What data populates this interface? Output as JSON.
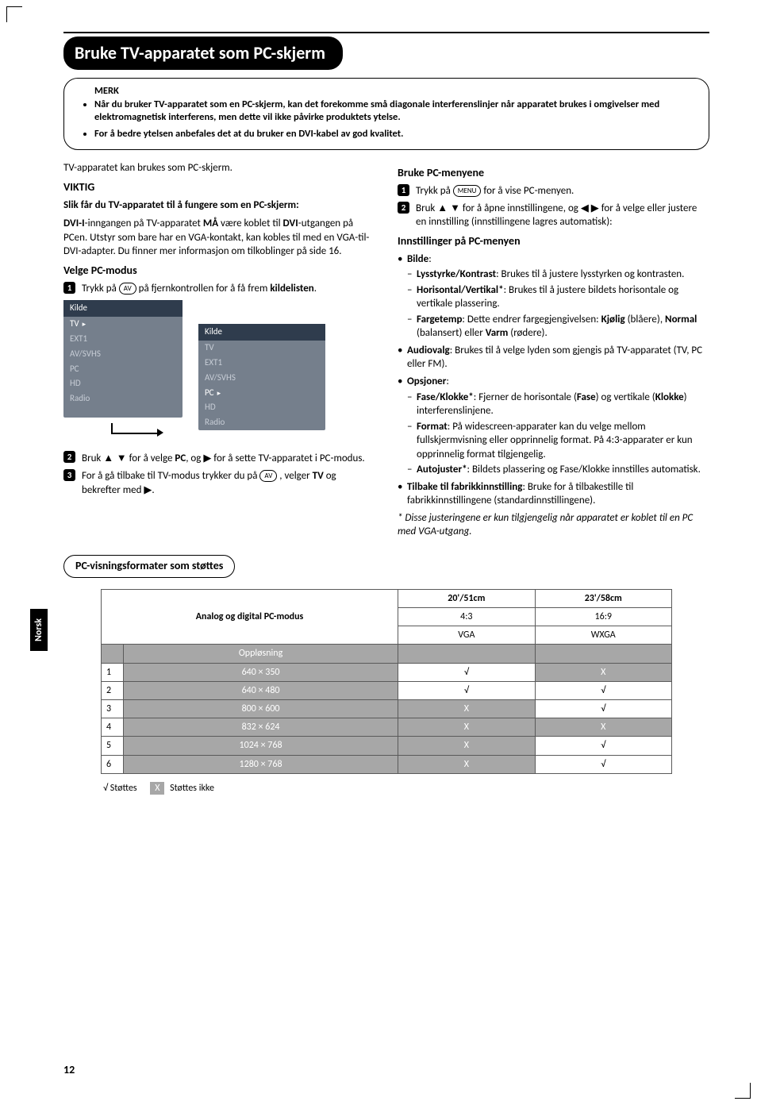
{
  "title": "Bruke TV-apparatet som PC-skjerm",
  "note": {
    "heading": "MERK",
    "items": [
      "Når du bruker TV-apparatet som en PC-skjerm, kan det forekomme små diagonale interferenslinjer når apparatet brukes i omgivelser med elektromagnetisk interferens, men dette vil ikke påvirke produktets ytelse.",
      "For å bedre ytelsen anbefales det at du bruker en DVI-kabel av god kvalitet."
    ]
  },
  "left": {
    "intro": "TV-apparatet kan brukes som PC-skjerm.",
    "viktig": "VIKTIG",
    "slik": "Slik får du TV-apparatet til å fungere som en PC-skjerm:",
    "dvi_para_parts": [
      "DVI-I",
      "-inngangen på TV-apparatet ",
      "MÅ",
      " være koblet til ",
      "DVI",
      "-utgangen på PCen. Utstyr som bare har en VGA-kontakt, kan kobles til med en VGA-til-DVI-adapter. Du finner mer informasjon om tilkoblinger på side 16."
    ],
    "velge_heading": "Velge PC-modus",
    "step1_parts": [
      "Trykk på ",
      " på fjernkontrollen for å få frem ",
      "kildelisten",
      "."
    ],
    "step1_key": "AV",
    "kilde": {
      "header": "Kilde",
      "items1": [
        "TV",
        "EXT1",
        "AV/SVHS",
        "PC",
        "HD",
        "Radio"
      ],
      "items2": [
        "TV",
        "EXT1",
        "AV/SVHS",
        "PC",
        "HD",
        "Radio"
      ]
    },
    "step2_parts": [
      "Bruk ",
      " for å velge ",
      "PC",
      ", og ",
      " for å sette TV-apparatet i PC-modus."
    ],
    "step3_parts": [
      "For å gå tilbake til TV-modus trykker du på ",
      " , velger ",
      "TV",
      " og bekrefter med ",
      "."
    ],
    "step3_key": "AV"
  },
  "right": {
    "brukepc": "Bruke PC-menyene",
    "r1_parts": [
      "Trykk på ",
      " for å vise PC-menyen."
    ],
    "r1_key": "MENU",
    "r2": "Bruk ▲ ▼ for å åpne innstillingene, og ◀ ▶ for å velge eller justere en innstilling (innstillingene lagres automatisk):",
    "innst": "Innstillinger på PC-menyen",
    "bilde": {
      "label": "Bilde",
      "items": [
        {
          "b": "Lysstyrke/Kontrast",
          "t": ": Brukes til å justere lysstyrken og kontrasten."
        },
        {
          "b": "Horisontal/Vertikal*",
          "t": ": Brukes til å justere bildets horisontale og vertikale plassering."
        },
        {
          "b": "Fargetemp",
          "t": ": Dette endrer fargegjengivelsen: ",
          "extra": "Kjølig (blåere), Normal (balansert) eller Varm (rødere)."
        }
      ]
    },
    "audiovalg": {
      "b": "Audiovalg",
      "t": ": Brukes til å velge lyden som gjengis på TV-apparatet (TV, PC eller FM)."
    },
    "opsjoner": {
      "label": "Opsjoner",
      "items": [
        {
          "b": "Fase/Klokke*",
          "t": ": Fjerner de horisontale (",
          "b2": "Fase",
          "t2": ") og vertikale (",
          "b3": "Klokke",
          "t3": ") interferenslinjene."
        },
        {
          "b": "Format",
          "t": ": På widescreen-apparater kan du velge mellom fullskjermvisning eller opprinnelig format. På 4:3-apparater er kun opprinnelig format tilgjengelig."
        },
        {
          "b": "Autojuster*",
          "t": ": Bildets plassering og Fase/Klokke innstilles automatisk."
        }
      ]
    },
    "tilbake": {
      "b": "Tilbake til fabrikkinnstilling",
      "t": ": Bruke for å tilbakestille til fabrikkinnstillingene (standardinnstillingene)."
    },
    "footnote": "* Disse justeringene er kun tilgjengelig når apparatet er koblet til en PC med VGA-utgang."
  },
  "formats_heading": "PC-visningsformater som støttes",
  "table": {
    "corner": "Analog og digital PC-modus",
    "size1": "20'/51cm",
    "size2": "23'/58cm",
    "asp1": "4:3",
    "asp2": "16:9",
    "mode1": "VGA",
    "mode2": "WXGA",
    "res_label": "Oppløsning",
    "rows": [
      {
        "n": "1",
        "r": "640 × 350",
        "a": "√",
        "b": "X"
      },
      {
        "n": "2",
        "r": "640 × 480",
        "a": "√",
        "b": "√"
      },
      {
        "n": "3",
        "r": "800 × 600",
        "a": "X",
        "b": "√"
      },
      {
        "n": "4",
        "r": "832 × 624",
        "a": "X",
        "b": "X"
      },
      {
        "n": "5",
        "r": "1024 × 768",
        "a": "X",
        "b": "√"
      },
      {
        "n": "6",
        "r": "1280 × 768",
        "a": "X",
        "b": "√"
      }
    ]
  },
  "legend": {
    "ok": "√",
    "ok_label": "Støttes",
    "no": "X",
    "no_label": "Støttes ikke"
  },
  "sidebar": "Norsk",
  "pagenum": "12"
}
